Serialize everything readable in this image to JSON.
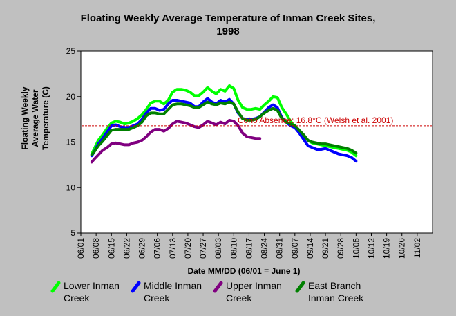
{
  "chart_data": {
    "type": "line",
    "title_line1": "Floating Weekly Average Temperature of Inman Creek Sites,",
    "title_line2": "1998",
    "xlabel": "Date MM/DD (06/01 = June 1)",
    "ylabel_line1": "Floating Weekly",
    "ylabel_line2": "Average Water",
    "ylabel_line3": "Temperature (C)",
    "x_ticks": [
      "06/01",
      "06/08",
      "06/15",
      "06/22",
      "06/29",
      "07/06",
      "07/13",
      "07/20",
      "07/27",
      "08/03",
      "08/10",
      "08/17",
      "08/24",
      "08/31",
      "09/07",
      "09/14",
      "09/21",
      "09/28",
      "10/05",
      "10/12",
      "10/19",
      "10/26",
      "11/02"
    ],
    "xlim_days": [
      0,
      161
    ],
    "ylim": [
      5,
      25
    ],
    "y_ticks": [
      "5",
      "10",
      "15",
      "20",
      "25"
    ],
    "threshold": {
      "value": 16.8,
      "label": "Coho Absence: 16.8°C (Welsh et al. 2001)",
      "color": "#cc0000"
    },
    "series": [
      {
        "name_line1": "Lower Inman",
        "name_line2": "Creek",
        "color": "#00ff00",
        "x": [
          5,
          6,
          8,
          10,
          12,
          14,
          16,
          18,
          20,
          22,
          24,
          26,
          28,
          30,
          32,
          34,
          36,
          38,
          40,
          42,
          44,
          46,
          48,
          50,
          52,
          54,
          56,
          58,
          60,
          62,
          64,
          66,
          68,
          70,
          72,
          74,
          76,
          78,
          80,
          82,
          84,
          86,
          88,
          90,
          92,
          94,
          96,
          98,
          100,
          102,
          104,
          106,
          108,
          110,
          112,
          114,
          116,
          118,
          120,
          122,
          124,
          126
        ],
        "values": [
          13.7,
          14.2,
          15.2,
          15.8,
          16.5,
          17.1,
          17.3,
          17.2,
          17.0,
          17.1,
          17.3,
          17.6,
          18.0,
          18.6,
          19.3,
          19.5,
          19.5,
          19.2,
          19.6,
          20.5,
          20.8,
          20.8,
          20.7,
          20.5,
          20.1,
          20.1,
          20.5,
          21.0,
          20.6,
          20.3,
          20.8,
          20.6,
          21.2,
          20.9,
          19.6,
          18.8,
          18.6,
          18.6,
          18.7,
          18.6,
          19.1,
          19.5,
          20.0,
          19.9,
          18.8,
          18.1,
          17.3,
          16.7,
          16.2,
          15.7,
          15.2,
          14.9,
          14.8,
          14.7,
          14.6,
          14.5,
          14.4,
          14.3,
          14.2,
          14.1,
          13.9,
          13.5
        ]
      },
      {
        "name_line1": "Middle Inman",
        "name_line2": "Creek",
        "color": "#0000ff",
        "x": [
          5,
          6,
          8,
          10,
          12,
          14,
          16,
          18,
          20,
          22,
          24,
          26,
          28,
          30,
          32,
          34,
          36,
          38,
          40,
          42,
          44,
          46,
          48,
          50,
          52,
          54,
          56,
          58,
          60,
          62,
          64,
          66,
          68,
          70,
          72,
          74,
          76,
          78,
          80,
          82,
          84,
          86,
          88,
          90,
          92,
          94,
          96,
          98,
          100,
          102,
          104,
          106,
          108,
          110,
          112,
          114,
          116,
          118,
          120,
          122,
          124,
          126
        ],
        "values": [
          13.5,
          13.9,
          14.8,
          15.4,
          16.1,
          16.8,
          16.9,
          16.7,
          16.6,
          16.6,
          16.8,
          17.0,
          17.5,
          18.2,
          18.7,
          18.7,
          18.5,
          18.6,
          19.2,
          19.6,
          19.6,
          19.5,
          19.4,
          19.3,
          18.9,
          18.9,
          19.4,
          19.8,
          19.4,
          19.2,
          19.6,
          19.4,
          19.7,
          19.2,
          18.2,
          17.6,
          17.5,
          17.5,
          17.6,
          17.8,
          18.3,
          18.8,
          19.1,
          18.8,
          17.7,
          17.2,
          16.8,
          16.6,
          16.0,
          15.3,
          14.6,
          14.4,
          14.2,
          14.2,
          14.3,
          14.1,
          13.9,
          13.7,
          13.6,
          13.5,
          13.3,
          12.9
        ]
      },
      {
        "name_line1": "Upper Inman",
        "name_line2": "Creek",
        "color": "#800080",
        "x": [
          5,
          6,
          8,
          10,
          12,
          14,
          16,
          18,
          20,
          22,
          24,
          26,
          28,
          30,
          32,
          34,
          36,
          38,
          40,
          42,
          44,
          46,
          48,
          50,
          52,
          54,
          56,
          58,
          60,
          62,
          64,
          66,
          68,
          70,
          72,
          74,
          76,
          78,
          80,
          82
        ],
        "values": [
          12.8,
          13.1,
          13.6,
          14.1,
          14.4,
          14.8,
          14.9,
          14.8,
          14.7,
          14.7,
          14.9,
          15.0,
          15.2,
          15.6,
          16.1,
          16.4,
          16.4,
          16.2,
          16.5,
          17.0,
          17.3,
          17.2,
          17.1,
          16.9,
          16.7,
          16.6,
          16.9,
          17.3,
          17.1,
          16.9,
          17.2,
          17.0,
          17.4,
          17.3,
          16.8,
          16.0,
          15.6,
          15.5,
          15.4,
          15.4
        ]
      },
      {
        "name_line1": "East Branch",
        "name_line2": "Inman Creek",
        "color": "#008000",
        "x": [
          5,
          6,
          8,
          10,
          12,
          14,
          16,
          18,
          20,
          22,
          24,
          26,
          28,
          30,
          32,
          34,
          36,
          38,
          40,
          42,
          44,
          46,
          48,
          50,
          52,
          54,
          56,
          58,
          60,
          62,
          64,
          66,
          68,
          70,
          72,
          74,
          76,
          78,
          80,
          82,
          84,
          86,
          88,
          90,
          92,
          94,
          96,
          98,
          100,
          102,
          104,
          106,
          108,
          110,
          112,
          114,
          116,
          118,
          120,
          122,
          124,
          126
        ],
        "values": [
          13.6,
          13.9,
          14.6,
          15.1,
          15.7,
          16.3,
          16.4,
          16.4,
          16.4,
          16.4,
          16.6,
          16.8,
          17.2,
          17.9,
          18.2,
          18.2,
          18.1,
          18.1,
          18.6,
          19.1,
          19.2,
          19.2,
          19.1,
          19.0,
          18.8,
          18.8,
          19.1,
          19.4,
          19.2,
          19.1,
          19.3,
          19.2,
          19.4,
          19.2,
          18.3,
          17.6,
          17.4,
          17.4,
          17.5,
          17.8,
          18.2,
          18.5,
          18.7,
          18.5,
          17.6,
          17.2,
          17.0,
          16.8,
          16.3,
          15.8,
          15.2,
          15.0,
          14.9,
          14.8,
          14.8,
          14.7,
          14.6,
          14.5,
          14.4,
          14.3,
          14.1,
          13.8
        ]
      }
    ],
    "legend_placement": "bottom",
    "grid": false
  }
}
